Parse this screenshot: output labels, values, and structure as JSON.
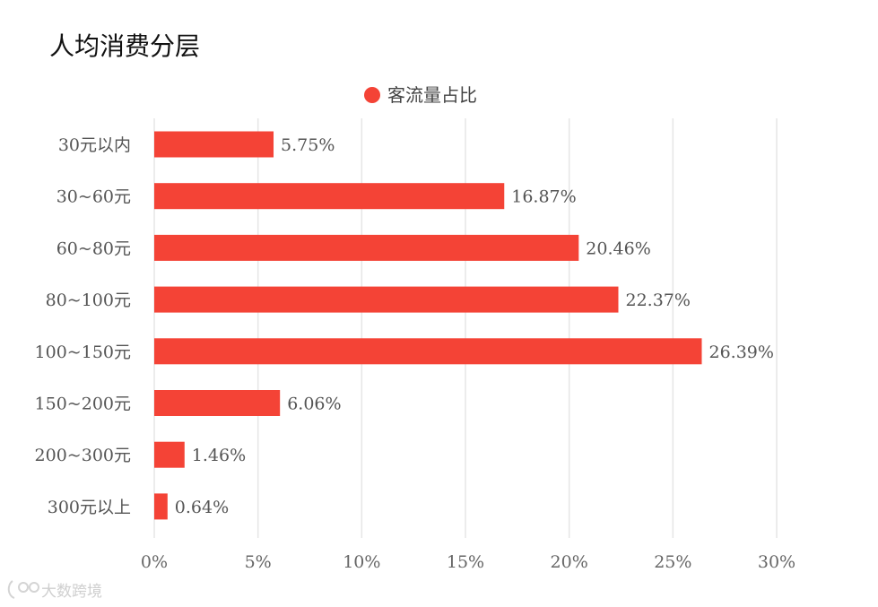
{
  "chart_data": {
    "type": "bar",
    "orientation": "horizontal",
    "title": "人均消费分层",
    "categories": [
      "30元以内",
      "30~60元",
      "60~80元",
      "80~100元",
      "100~150元",
      "150~200元",
      "200~300元",
      "300元以上"
    ],
    "series": [
      {
        "name": "客流量占比",
        "values": [
          5.75,
          16.87,
          20.46,
          22.37,
          26.39,
          6.06,
          1.46,
          0.64
        ],
        "value_labels": [
          "5.75%",
          "16.87%",
          "20.46%",
          "22.37%",
          "26.39%",
          "6.06%",
          "1.46%",
          "0.64%"
        ]
      }
    ],
    "xlim": [
      0,
      30
    ],
    "x_ticks": [
      "0%",
      "5%",
      "10%",
      "15%",
      "20%",
      "25%",
      "30%"
    ],
    "x_tick_values": [
      0,
      5,
      10,
      15,
      20,
      25,
      30
    ],
    "grid": "vertical",
    "legend_position": "top-center",
    "bar_color": "#f44336",
    "gridline_color": "#e6e6e6"
  },
  "watermark": {
    "text": "大数跨境"
  }
}
